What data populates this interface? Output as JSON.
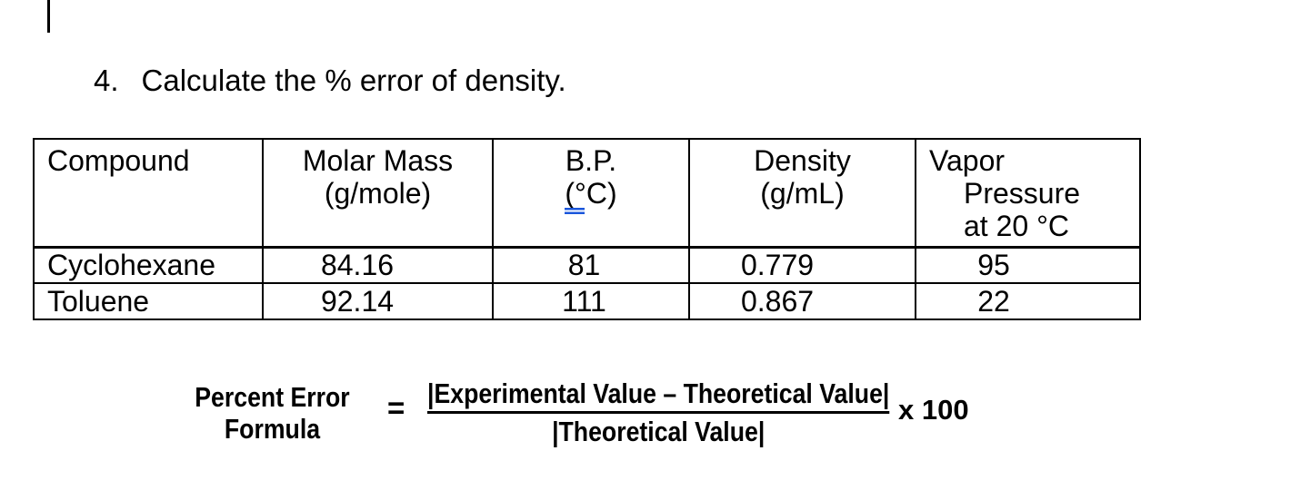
{
  "question": {
    "number": "4.",
    "text": "Calculate the % error of density."
  },
  "table": {
    "headers": [
      {
        "lines": [
          "Compound"
        ]
      },
      {
        "lines": [
          "Molar Mass",
          "(g/mole)"
        ]
      },
      {
        "lines": [
          "B.P."
        ],
        "unit_flagged": "(°",
        "unit_rest": "C)"
      },
      {
        "lines": [
          "Density",
          "(g/mL)"
        ]
      },
      {
        "lines": [
          "Vapor",
          "Pressure",
          "at 20 °C"
        ]
      }
    ],
    "rows": [
      {
        "compound": "Cyclohexane",
        "molar_mass": "84.16",
        "bp": "81",
        "density": "0.779",
        "vapor_pressure": "95"
      },
      {
        "compound": "Toluene",
        "molar_mass": "92.14",
        "bp": "111",
        "density": "0.867",
        "vapor_pressure": "22"
      }
    ],
    "grammar_underline_color": "#1a56db"
  },
  "formula": {
    "label_line1": "Percent Error",
    "label_line2": "Formula",
    "equals": "=",
    "numerator": "|Experimental Value – Theoretical Value|",
    "denominator": "|Theoretical Value|",
    "multiplier": "x 100"
  }
}
